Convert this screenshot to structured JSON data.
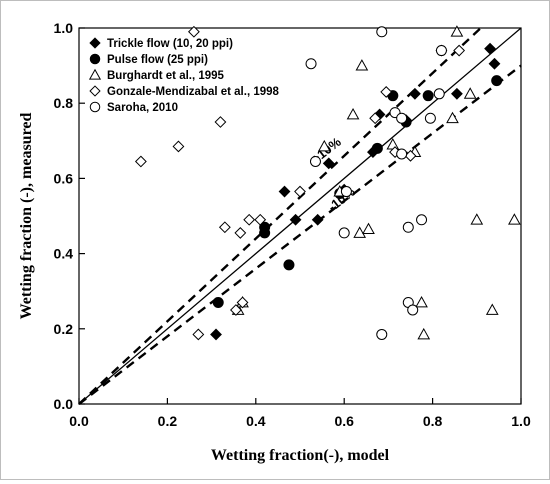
{
  "chart_data": {
    "type": "scatter",
    "xlabel": "Wetting  fraction(-), model",
    "ylabel": "Wetting  fraction (-), measured",
    "xlim": [
      0,
      1
    ],
    "ylim": [
      0,
      1
    ],
    "x_ticks": [
      "0.0",
      "0.2",
      "0.4",
      "0.6",
      "0.8",
      "1.0"
    ],
    "y_ticks": [
      "0.0",
      "0.2",
      "0.4",
      "0.6",
      "0.8",
      "1.0"
    ],
    "grid": false,
    "legend_position": "top-left",
    "series": [
      {
        "name": "Trickle flow (10, 20 ppi)",
        "marker": "diamond-filled",
        "points": [
          [
            0.31,
            0.185
          ],
          [
            0.465,
            0.565
          ],
          [
            0.49,
            0.49
          ],
          [
            0.54,
            0.49
          ],
          [
            0.565,
            0.64
          ],
          [
            0.6,
            0.57
          ],
          [
            0.665,
            0.67
          ],
          [
            0.68,
            0.77
          ],
          [
            0.74,
            0.755
          ],
          [
            0.76,
            0.825
          ],
          [
            0.855,
            0.825
          ],
          [
            0.93,
            0.945
          ],
          [
            0.94,
            0.905
          ]
        ]
      },
      {
        "name": "Pulse flow (25 ppi)",
        "marker": "circle-filled",
        "points": [
          [
            0.315,
            0.27
          ],
          [
            0.42,
            0.455
          ],
          [
            0.42,
            0.47
          ],
          [
            0.475,
            0.37
          ],
          [
            0.59,
            0.56
          ],
          [
            0.675,
            0.68
          ],
          [
            0.71,
            0.82
          ],
          [
            0.74,
            0.75
          ],
          [
            0.79,
            0.82
          ],
          [
            0.945,
            0.86
          ]
        ]
      },
      {
        "name": "Burghardt et al., 1995",
        "marker": "triangle-open",
        "points": [
          [
            0.36,
            0.25
          ],
          [
            0.37,
            0.27
          ],
          [
            0.555,
            0.685
          ],
          [
            0.59,
            0.565
          ],
          [
            0.62,
            0.77
          ],
          [
            0.635,
            0.455
          ],
          [
            0.64,
            0.9
          ],
          [
            0.655,
            0.465
          ],
          [
            0.71,
            0.69
          ],
          [
            0.76,
            0.67
          ],
          [
            0.775,
            0.27
          ],
          [
            0.78,
            0.185
          ],
          [
            0.845,
            0.76
          ],
          [
            0.855,
            0.99
          ],
          [
            0.885,
            0.825
          ],
          [
            0.9,
            0.49
          ],
          [
            0.935,
            0.25
          ],
          [
            0.985,
            0.49
          ]
        ]
      },
      {
        "name": "Gonzale-Mendizabal et al., 1998",
        "marker": "diamond-open",
        "points": [
          [
            0.14,
            0.645
          ],
          [
            0.225,
            0.685
          ],
          [
            0.26,
            0.99
          ],
          [
            0.27,
            0.185
          ],
          [
            0.32,
            0.75
          ],
          [
            0.33,
            0.47
          ],
          [
            0.355,
            0.25
          ],
          [
            0.365,
            0.455
          ],
          [
            0.37,
            0.27
          ],
          [
            0.385,
            0.49
          ],
          [
            0.41,
            0.49
          ],
          [
            0.5,
            0.565
          ],
          [
            0.67,
            0.76
          ],
          [
            0.695,
            0.83
          ],
          [
            0.715,
            0.67
          ],
          [
            0.75,
            0.66
          ],
          [
            0.82,
            0.94
          ],
          [
            0.86,
            0.94
          ]
        ]
      },
      {
        "name": "Saroha, 2010",
        "marker": "circle-open",
        "points": [
          [
            0.525,
            0.905
          ],
          [
            0.535,
            0.645
          ],
          [
            0.6,
            0.455
          ],
          [
            0.605,
            0.565
          ],
          [
            0.685,
            0.99
          ],
          [
            0.685,
            0.185
          ],
          [
            0.715,
            0.775
          ],
          [
            0.73,
            0.76
          ],
          [
            0.73,
            0.665
          ],
          [
            0.745,
            0.47
          ],
          [
            0.745,
            0.27
          ],
          [
            0.755,
            0.25
          ],
          [
            0.775,
            0.49
          ],
          [
            0.795,
            0.76
          ],
          [
            0.815,
            0.825
          ],
          [
            0.82,
            0.94
          ]
        ]
      }
    ],
    "reference_lines": [
      {
        "style": "solid",
        "slope": 1.0
      },
      {
        "style": "dashed",
        "slope": 1.1,
        "label": "+10%"
      },
      {
        "style": "dashed",
        "slope": 0.9,
        "label": "-10%"
      }
    ]
  }
}
